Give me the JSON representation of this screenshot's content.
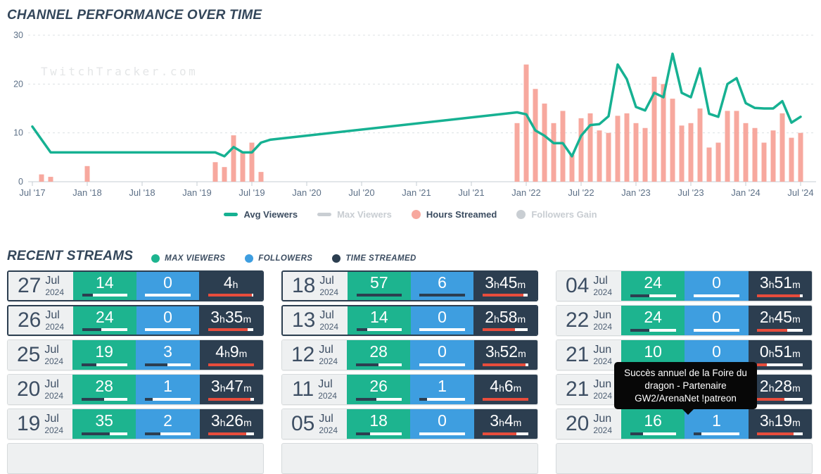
{
  "colors": {
    "teal": "#1db48f",
    "blue": "#3e9ee0",
    "navy": "#2c3e50",
    "red": "#e74c3c",
    "salmon": "#f7a89e",
    "line_teal": "#16b192",
    "inactive_gray": "#c9ced3",
    "date_cell_bg": "#eef0f1",
    "title_text": "#33465a",
    "axis_text": "#5d7087"
  },
  "performance": {
    "title": "CHANNEL PERFORMANCE OVER TIME",
    "watermark": "TwitchTracker.com",
    "legend": [
      {
        "label": "Avg Viewers",
        "shape": "line",
        "color": "#16b192",
        "active": true
      },
      {
        "label": "Max Viewers",
        "shape": "line",
        "color": "#c9ced3",
        "active": false
      },
      {
        "label": "Hours Streamed",
        "shape": "circle",
        "color": "#f7a89e",
        "active": true
      },
      {
        "label": "Followers Gain",
        "shape": "circle",
        "color": "#c9ced3",
        "active": false
      }
    ]
  },
  "chart_data": {
    "type": "line+bar",
    "title": "CHANNEL PERFORMANCE OVER TIME",
    "x_unit": "months since Jul 2017",
    "xlim": [
      0,
      84
    ],
    "ylim": [
      0,
      30
    ],
    "yticks": [
      0,
      10,
      20,
      30
    ],
    "grid": "horizontal-dashed",
    "legend_position": "bottom-center",
    "xticks": [
      {
        "m": 0,
        "label": "Jul '17"
      },
      {
        "m": 6,
        "label": "Jan '18"
      },
      {
        "m": 12,
        "label": "Jul '18"
      },
      {
        "m": 18,
        "label": "Jan '19"
      },
      {
        "m": 24,
        "label": "Jul '19"
      },
      {
        "m": 30,
        "label": "Jan '20"
      },
      {
        "m": 36,
        "label": "Jul '20"
      },
      {
        "m": 42,
        "label": "Jan '21"
      },
      {
        "m": 48,
        "label": "Jul '21"
      },
      {
        "m": 54,
        "label": "Jan '22"
      },
      {
        "m": 60,
        "label": "Jul '22"
      },
      {
        "m": 66,
        "label": "Jan '23"
      },
      {
        "m": 72,
        "label": "Jul '23"
      },
      {
        "m": 78,
        "label": "Jan '24"
      },
      {
        "m": 84,
        "label": "Jul '24"
      }
    ],
    "series": [
      {
        "name": "Avg Viewers",
        "type": "line",
        "color": "#16b192",
        "points": [
          [
            0,
            11.3
          ],
          [
            2,
            6
          ],
          [
            20,
            6
          ],
          [
            21,
            5.2
          ],
          [
            22,
            7.1
          ],
          [
            23,
            6
          ],
          [
            24,
            6
          ],
          [
            25,
            8
          ],
          [
            26,
            8.6
          ],
          [
            53,
            14.2
          ],
          [
            54,
            13.8
          ],
          [
            55,
            10.5
          ],
          [
            56,
            9.4
          ],
          [
            57,
            7.9
          ],
          [
            58,
            7.9
          ],
          [
            59,
            5.2
          ],
          [
            60,
            9.4
          ],
          [
            61,
            11.6
          ],
          [
            62,
            11.8
          ],
          [
            63,
            13.4
          ],
          [
            64,
            24
          ],
          [
            65,
            21
          ],
          [
            66,
            15.3
          ],
          [
            67,
            14.6
          ],
          [
            68,
            18.2
          ],
          [
            69,
            17.3
          ],
          [
            70,
            26.2
          ],
          [
            71,
            18.2
          ],
          [
            72,
            17.3
          ],
          [
            73,
            23.2
          ],
          [
            74,
            13.9
          ],
          [
            75,
            13.3
          ],
          [
            76,
            20
          ],
          [
            77,
            21.2
          ],
          [
            78,
            16.1
          ],
          [
            79,
            15.1
          ],
          [
            80,
            15
          ],
          [
            81,
            15
          ],
          [
            82,
            16.5
          ],
          [
            83,
            12.1
          ],
          [
            84,
            13.3
          ]
        ]
      },
      {
        "name": "Hours Streamed",
        "type": "bar",
        "color": "#f7a89e",
        "points": [
          [
            1,
            1.5
          ],
          [
            2,
            1
          ],
          [
            6,
            3.2
          ],
          [
            20,
            4
          ],
          [
            21,
            3
          ],
          [
            22,
            9.5
          ],
          [
            23,
            6
          ],
          [
            24,
            8
          ],
          [
            25,
            2
          ],
          [
            53,
            12
          ],
          [
            54,
            24
          ],
          [
            55,
            19
          ],
          [
            56,
            16
          ],
          [
            57,
            12
          ],
          [
            58,
            14.5
          ],
          [
            59,
            5.5
          ],
          [
            60,
            13
          ],
          [
            61,
            14
          ],
          [
            62,
            10.5
          ],
          [
            63,
            10
          ],
          [
            64,
            13.5
          ],
          [
            65,
            14
          ],
          [
            66,
            12
          ],
          [
            67,
            11
          ],
          [
            68,
            21.5
          ],
          [
            69,
            20
          ],
          [
            70,
            17
          ],
          [
            71,
            11.5
          ],
          [
            72,
            12
          ],
          [
            73,
            15
          ],
          [
            74,
            7
          ],
          [
            75,
            8
          ],
          [
            76,
            14.5
          ],
          [
            77,
            14.5
          ],
          [
            78,
            12
          ],
          [
            79,
            11
          ],
          [
            80,
            8
          ],
          [
            81,
            10.5
          ],
          [
            82,
            14
          ],
          [
            83,
            9
          ],
          [
            84,
            10
          ]
        ]
      }
    ]
  },
  "recent": {
    "title": "RECENT STREAMS",
    "legend": [
      {
        "label": "MAX VIEWERS",
        "color": "#1db48f"
      },
      {
        "label": "FOLLOWERS",
        "color": "#3e9ee0"
      },
      {
        "label": "TIME STREAMED",
        "color": "#2c3e50"
      }
    ],
    "tooltip": {
      "text": "Succès annuel de la Foire du dragon - Partenaire GW2/ArenaNet !patreon"
    },
    "columns": [
      [
        {
          "day": "27",
          "month": "Jul",
          "year": "2024",
          "max_viewers": 14,
          "followers": 0,
          "time_streamed": "4h",
          "highlighted": true,
          "covered": false
        },
        {
          "day": "26",
          "month": "Jul",
          "year": "2024",
          "max_viewers": 24,
          "followers": 0,
          "time_streamed": "3h35m",
          "highlighted": true,
          "covered": false
        },
        {
          "day": "25",
          "month": "Jul",
          "year": "2024",
          "max_viewers": 19,
          "followers": 3,
          "time_streamed": "4h9m",
          "highlighted": false,
          "covered": false
        },
        {
          "day": "20",
          "month": "Jul",
          "year": "2024",
          "max_viewers": 28,
          "followers": 1,
          "time_streamed": "3h47m",
          "highlighted": false,
          "covered": false
        },
        {
          "day": "19",
          "month": "Jul",
          "year": "2024",
          "max_viewers": 35,
          "followers": 2,
          "time_streamed": "3h26m",
          "highlighted": false,
          "covered": false
        }
      ],
      [
        {
          "day": "18",
          "month": "Jul",
          "year": "2024",
          "max_viewers": 57,
          "followers": 6,
          "time_streamed": "3h45m",
          "highlighted": true,
          "covered": false
        },
        {
          "day": "13",
          "month": "Jul",
          "year": "2024",
          "max_viewers": 14,
          "followers": 0,
          "time_streamed": "2h58m",
          "highlighted": true,
          "covered": false
        },
        {
          "day": "12",
          "month": "Jul",
          "year": "2024",
          "max_viewers": 28,
          "followers": 0,
          "time_streamed": "3h52m",
          "highlighted": false,
          "covered": false
        },
        {
          "day": "11",
          "month": "Jul",
          "year": "2024",
          "max_viewers": 26,
          "followers": 1,
          "time_streamed": "4h6m",
          "highlighted": false,
          "covered": false
        },
        {
          "day": "05",
          "month": "Jul",
          "year": "2024",
          "max_viewers": 18,
          "followers": 0,
          "time_streamed": "3h4m",
          "highlighted": false,
          "covered": false
        }
      ],
      [
        {
          "day": "04",
          "month": "Jul",
          "year": "2024",
          "max_viewers": 24,
          "followers": 0,
          "time_streamed": "3h51m",
          "highlighted": false,
          "covered": false
        },
        {
          "day": "22",
          "month": "Jun",
          "year": "2024",
          "max_viewers": 24,
          "followers": 0,
          "time_streamed": "2h45m",
          "highlighted": false,
          "covered": false
        },
        {
          "day": "21",
          "month": "Jun",
          "year": "2024",
          "max_viewers": 10,
          "followers": 0,
          "time_streamed": "0h51m",
          "highlighted": false,
          "covered": false
        },
        {
          "day": "21",
          "month": "Jun",
          "year": "2024",
          "max_viewers": null,
          "followers": null,
          "time_streamed": "2h28m",
          "highlighted": false,
          "covered": true
        },
        {
          "day": "20",
          "month": "Jun",
          "year": "2024",
          "max_viewers": 16,
          "followers": 1,
          "time_streamed": "3h19m",
          "highlighted": false,
          "covered": false
        }
      ]
    ]
  }
}
